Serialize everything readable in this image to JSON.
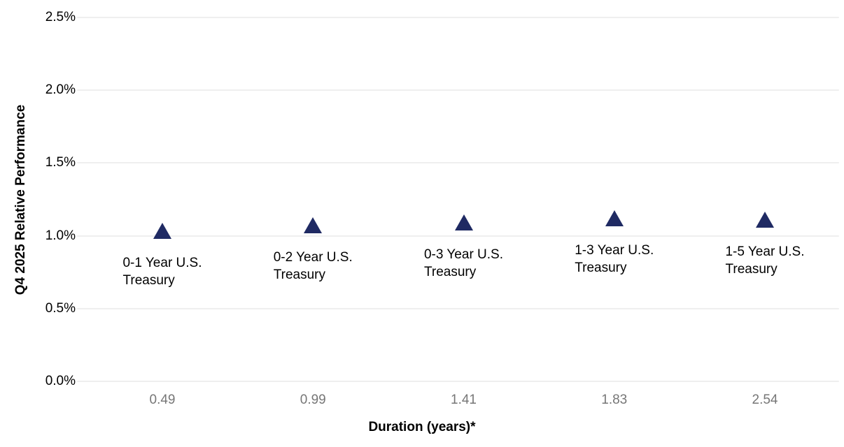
{
  "chart_data": {
    "type": "scatter",
    "title": "",
    "ylabel": "Q4 2025 Relative Performance",
    "xlabel": "Duration (years)*",
    "ylim": [
      0,
      2.5
    ],
    "yticks": [
      "0.0%",
      "0.5%",
      "1.0%",
      "1.5%",
      "2.0%",
      "2.5%"
    ],
    "ytick_values": [
      0.0,
      0.5,
      1.0,
      1.5,
      2.0,
      2.5
    ],
    "grid": true,
    "legend": false,
    "marker_shape": "triangle-up",
    "points": [
      {
        "label_lines": [
          "0-1 Year U.S.",
          "Treasury"
        ],
        "duration_years": "0.49",
        "value_pct": 1.03
      },
      {
        "label_lines": [
          "0-2 Year U.S.",
          "Treasury"
        ],
        "duration_years": "0.99",
        "value_pct": 1.07
      },
      {
        "label_lines": [
          "0-3 Year U.S.",
          "Treasury"
        ],
        "duration_years": "1.41",
        "value_pct": 1.09
      },
      {
        "label_lines": [
          "1-3 Year U.S.",
          "Treasury"
        ],
        "duration_years": "1.83",
        "value_pct": 1.12
      },
      {
        "label_lines": [
          "1-5 Year U.S.",
          "Treasury"
        ],
        "duration_years": "2.54",
        "value_pct": 1.11
      }
    ],
    "colors": {
      "marker": "#1f2a63",
      "gridline": "#efefef",
      "x_tick_text": "#767676",
      "axis_text": "#000000",
      "background": "#ffffff"
    }
  }
}
